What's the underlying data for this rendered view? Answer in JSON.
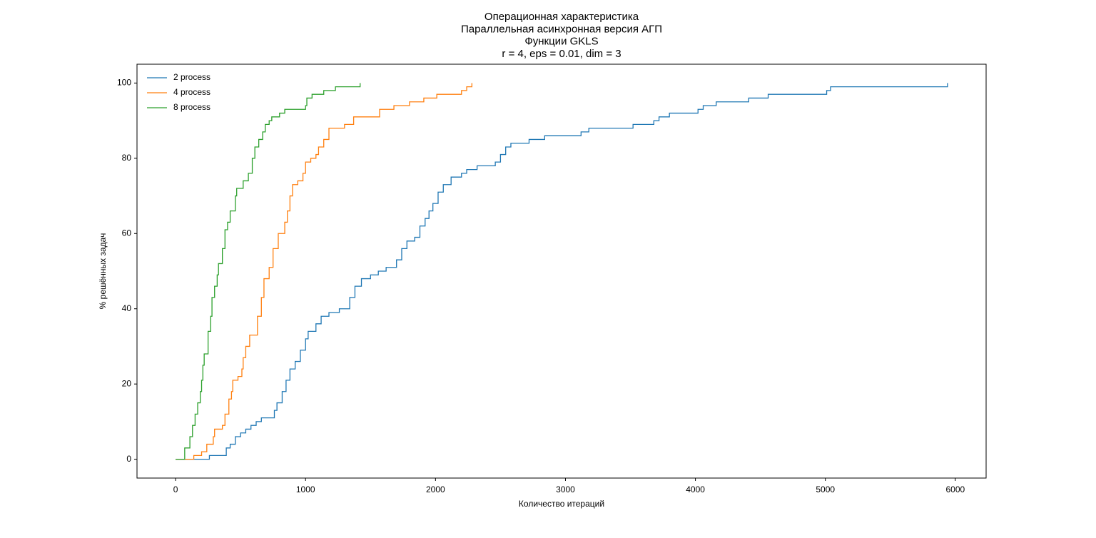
{
  "chart_data": {
    "type": "line",
    "drawstyle": "steps-post",
    "title": [
      "Операционная характеристика",
      "Параллельная асинхронная версия АГП",
      "Функции GKLS",
      "r = 4, eps = 0.01, dim = 3"
    ],
    "xlabel": "Количество итераций",
    "ylabel": "% решённых задач",
    "xlim": [
      -297,
      6237
    ],
    "ylim": [
      -5,
      105
    ],
    "xticks": [
      0,
      1000,
      2000,
      3000,
      4000,
      5000,
      6000
    ],
    "yticks": [
      0,
      20,
      40,
      60,
      80,
      100
    ],
    "grid": false,
    "legend": "upper left",
    "series": [
      {
        "name": "2 process",
        "color": "#1f77b4",
        "x": [
          0,
          260,
          260,
          370,
          390,
          420,
          460,
          500,
          540,
          580,
          620,
          660,
          760,
          780,
          820,
          850,
          880,
          920,
          960,
          1000,
          1020,
          1080,
          1120,
          1180,
          1260,
          1340,
          1380,
          1430,
          1500,
          1560,
          1620,
          1700,
          1740,
          1780,
          1840,
          1880,
          1920,
          1950,
          1980,
          2020,
          2060,
          2120,
          2200,
          2240,
          2320,
          2460,
          2500,
          2540,
          2580,
          2720,
          2840,
          3120,
          3180,
          3520,
          3680,
          3720,
          3800,
          4020,
          4060,
          4160,
          4410,
          4560,
          5010,
          5040,
          5940
        ],
        "values": [
          0,
          0,
          1,
          1,
          3,
          4,
          6,
          7,
          8,
          9,
          10,
          11,
          13,
          15,
          18,
          21,
          24,
          26,
          29,
          32,
          34,
          36,
          38,
          39,
          40,
          43,
          46,
          48,
          49,
          50,
          51,
          53,
          56,
          58,
          59,
          62,
          64,
          66,
          68,
          71,
          73,
          75,
          76,
          77,
          78,
          79,
          81,
          83,
          84,
          85,
          86,
          87,
          88,
          89,
          90,
          91,
          92,
          93,
          94,
          95,
          96,
          97,
          98,
          99,
          100
        ]
      },
      {
        "name": "4 process",
        "color": "#ff7f0e",
        "x": [
          0,
          80,
          140,
          200,
          240,
          290,
          300,
          360,
          380,
          410,
          430,
          440,
          480,
          510,
          520,
          540,
          570,
          630,
          660,
          680,
          720,
          750,
          790,
          840,
          860,
          880,
          900,
          940,
          980,
          1000,
          1040,
          1080,
          1100,
          1140,
          1180,
          1300,
          1370,
          1570,
          1680,
          1800,
          1910,
          2010,
          2200,
          2240,
          2280
        ],
        "values": [
          0,
          0,
          1,
          2,
          4,
          6,
          8,
          9,
          12,
          16,
          18,
          21,
          22,
          24,
          27,
          30,
          33,
          38,
          43,
          48,
          51,
          56,
          60,
          63,
          66,
          70,
          73,
          74,
          76,
          79,
          80,
          81,
          83,
          85,
          88,
          89,
          91,
          93,
          94,
          95,
          96,
          97,
          98,
          99,
          100
        ]
      },
      {
        "name": "8 process",
        "color": "#2ca02c",
        "x": [
          0,
          70,
          70,
          110,
          130,
          150,
          170,
          190,
          200,
          210,
          220,
          250,
          270,
          280,
          300,
          320,
          330,
          360,
          380,
          400,
          420,
          460,
          470,
          520,
          560,
          590,
          610,
          640,
          670,
          690,
          720,
          740,
          800,
          840,
          1000,
          1010,
          1050,
          1140,
          1230,
          1420
        ],
        "values": [
          0,
          0,
          3,
          6,
          9,
          12,
          15,
          18,
          21,
          25,
          28,
          34,
          38,
          43,
          46,
          49,
          52,
          56,
          61,
          63,
          66,
          70,
          72,
          74,
          76,
          80,
          83,
          85,
          87,
          89,
          90,
          91,
          92,
          93,
          94,
          96,
          97,
          98,
          99,
          100
        ]
      }
    ]
  }
}
